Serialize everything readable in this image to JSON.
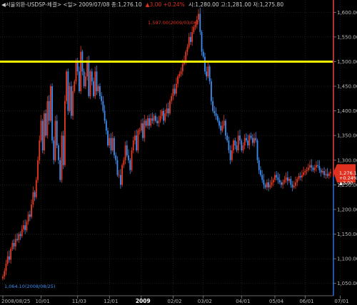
{
  "header": {
    "prefix": "◀서울외환-USDSP-체결> <일> 2009/07/08 종:1,276.10",
    "change": "▲3.00 +0.24%",
    "ohlc": "시:1,280.00 고:1,281.00 저:1,275.80"
  },
  "annotations": {
    "high_label": "1,597.00(2009/03/06)",
    "low_label": "1,064.10(2008/08/25)"
  },
  "last_price_box": {
    "price": "1,276.10",
    "pct": "+0.24%",
    "change": "▲3.00"
  },
  "colors": {
    "up": "#e83a22",
    "down": "#3d8ef0",
    "hline": "#f0f000",
    "grid": "#3a3a3a",
    "axis_blue": "#2f6fe0",
    "axis_red": "#e03020"
  },
  "chart_data": {
    "type": "candlestick",
    "ylim": [
      1025,
      1625
    ],
    "y_ticks": [
      {
        "value": 1600,
        "label": "1,600.00"
      },
      {
        "value": 1550,
        "label": "1,550.00"
      },
      {
        "value": 1500,
        "label": "1,500.00"
      },
      {
        "value": 1450,
        "label": "1,450.00"
      },
      {
        "value": 1400,
        "label": "1,400.00"
      },
      {
        "value": 1350,
        "label": "1,350.00"
      },
      {
        "value": 1300,
        "label": "1,300.00"
      },
      {
        "value": 1250,
        "label": "1,250.00"
      },
      {
        "value": 1200,
        "label": "1,200.00"
      },
      {
        "value": 1150,
        "label": "1,150.00"
      },
      {
        "value": 1100,
        "label": "1,100.00"
      },
      {
        "value": 1050,
        "label": "1,050.00"
      }
    ],
    "x_labels": [
      {
        "index": 0,
        "label": "2008/08/25",
        "bold": false
      },
      {
        "index": 24,
        "label": "10/01",
        "bold": false
      },
      {
        "index": 47,
        "label": "11/03",
        "bold": false
      },
      {
        "index": 67,
        "label": "12/01",
        "bold": false
      },
      {
        "index": 87,
        "label": "2009",
        "bold": true
      },
      {
        "index": 107,
        "label": "02/02",
        "bold": false
      },
      {
        "index": 126,
        "label": "03/02",
        "bold": false
      },
      {
        "index": 150,
        "label": "04/01",
        "bold": false
      },
      {
        "index": 171,
        "label": "05/04",
        "bold": false
      },
      {
        "index": 190,
        "label": "06/01",
        "bold": false
      },
      {
        "index": 212,
        "label": "07/01",
        "bold": false
      }
    ],
    "horizontal_line": 1500,
    "last_close": 1276.1,
    "closes": [
      1064,
      1075,
      1090,
      1105,
      1098,
      1120,
      1132,
      1125,
      1140,
      1138,
      1150,
      1146,
      1160,
      1168,
      1158,
      1175,
      1190,
      1185,
      1210,
      1235,
      1225,
      1260,
      1300,
      1340,
      1380,
      1320,
      1395,
      1350,
      1420,
      1380,
      1450,
      1340,
      1300,
      1380,
      1330,
      1300,
      1260,
      1350,
      1290,
      1420,
      1480,
      1400,
      1450,
      1390,
      1440,
      1460,
      1500,
      1480,
      1440,
      1520,
      1480,
      1450,
      1470,
      1500,
      1430,
      1480,
      1460,
      1430,
      1480,
      1440,
      1450,
      1430,
      1420,
      1400,
      1380,
      1360,
      1330,
      1345,
      1320,
      1345,
      1310,
      1300,
      1270,
      1270,
      1250,
      1290,
      1300,
      1330,
      1310,
      1300,
      1280,
      1320,
      1340,
      1350,
      1320,
      1360,
      1360,
      1375,
      1345,
      1380,
      1370,
      1385,
      1370,
      1385,
      1380,
      1390,
      1380,
      1375,
      1380,
      1390,
      1400,
      1380,
      1395,
      1405,
      1395,
      1420,
      1430,
      1445,
      1435,
      1455,
      1470,
      1475,
      1480,
      1495,
      1500,
      1520,
      1530,
      1550,
      1540,
      1560,
      1570,
      1575,
      1585,
      1597,
      1560,
      1520,
      1510,
      1480,
      1470,
      1490,
      1460,
      1420,
      1400,
      1395,
      1390,
      1380,
      1370,
      1360,
      1370,
      1380,
      1350,
      1340,
      1320,
      1300,
      1320,
      1340,
      1330,
      1320,
      1350,
      1340,
      1320,
      1330,
      1345,
      1340,
      1330,
      1350,
      1345,
      1335,
      1345,
      1340,
      1300,
      1280,
      1270,
      1260,
      1250,
      1245,
      1255,
      1245,
      1250,
      1255,
      1260,
      1270,
      1265,
      1260,
      1255,
      1250,
      1255,
      1260,
      1265,
      1258,
      1262,
      1250,
      1245,
      1248,
      1255,
      1262,
      1268,
      1265,
      1270,
      1275,
      1278,
      1280,
      1285,
      1290,
      1285,
      1280,
      1285,
      1290,
      1288,
      1280,
      1275,
      1278,
      1270,
      1272,
      1268,
      1273.1,
      1276.1
    ]
  }
}
